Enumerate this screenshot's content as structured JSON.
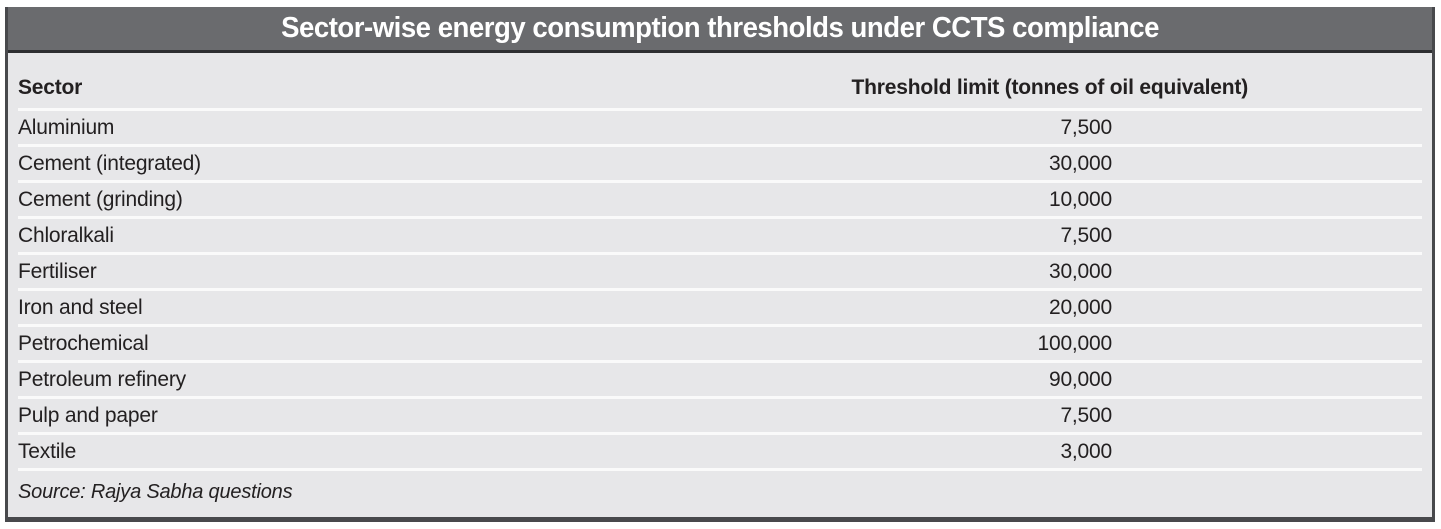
{
  "title": "Sector-wise energy consumption thresholds under CCTS compliance",
  "table": {
    "columns": {
      "sector": "Sector",
      "threshold": "Threshold limit (tonnes of oil equivalent)"
    },
    "rows": [
      {
        "sector": "Aluminium",
        "threshold": "7,500"
      },
      {
        "sector": "Cement (integrated)",
        "threshold": "30,000"
      },
      {
        "sector": "Cement (grinding)",
        "threshold": "10,000"
      },
      {
        "sector": "Chloralkali",
        "threshold": "7,500"
      },
      {
        "sector": "Fertiliser",
        "threshold": "30,000"
      },
      {
        "sector": "Iron and steel",
        "threshold": "20,000"
      },
      {
        "sector": "Petrochemical",
        "threshold": "100,000"
      },
      {
        "sector": "Petroleum refinery",
        "threshold": "90,000"
      },
      {
        "sector": "Pulp and paper",
        "threshold": "7,500"
      },
      {
        "sector": "Textile",
        "threshold": "3,000"
      }
    ]
  },
  "source": "Source: Rajya Sabha questions",
  "colors": {
    "title_bar_bg": "#6a6b6e",
    "title_rule": "#2e2f31",
    "body_bg": "#e7e7e9",
    "divider": "#fafafa",
    "frame": "#48494c",
    "text": "#232021",
    "title_text": "#ffffff"
  },
  "chart_data": {
    "type": "table",
    "title": "Sector-wise energy consumption thresholds under CCTS compliance",
    "columns": [
      "Sector",
      "Threshold limit (tonnes of oil equivalent)"
    ],
    "categories": [
      "Aluminium",
      "Cement (integrated)",
      "Cement (grinding)",
      "Chloralkali",
      "Fertiliser",
      "Iron and steel",
      "Petrochemical",
      "Petroleum refinery",
      "Pulp and paper",
      "Textile"
    ],
    "values": [
      7500,
      30000,
      10000,
      7500,
      30000,
      20000,
      100000,
      90000,
      7500,
      3000
    ],
    "source": "Source: Rajya Sabha questions"
  }
}
